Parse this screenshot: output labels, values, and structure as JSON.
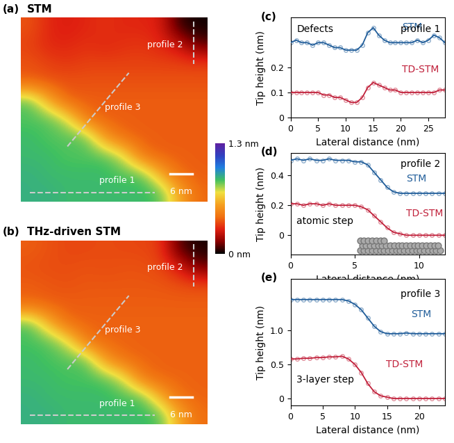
{
  "chart_data": [
    {
      "type": "heatmap",
      "panel": "(a)",
      "title": "STM",
      "annotations": [
        "profile 1",
        "profile 2",
        "profile 3"
      ],
      "scale_bar": "6 nm",
      "colorbar_range": [
        0,
        1.3
      ],
      "colorbar_ticks": [
        {
          "value": 0,
          "label": "0 nm"
        },
        {
          "value": 1.3,
          "label": "1.3 nm"
        }
      ],
      "cells": [
        [
          0.38,
          0.3,
          0.28,
          0.3,
          0.32,
          0.3,
          0.3,
          0.28,
          0.05,
          0.02
        ],
        [
          0.35,
          0.3,
          0.3,
          0.32,
          0.3,
          0.32,
          0.33,
          0.3,
          0.25,
          0.1
        ],
        [
          0.38,
          0.35,
          0.33,
          0.35,
          0.35,
          0.35,
          0.35,
          0.35,
          0.35,
          0.35
        ],
        [
          0.4,
          0.38,
          0.38,
          0.38,
          0.38,
          0.38,
          0.38,
          0.38,
          0.38,
          0.38
        ],
        [
          0.85,
          0.6,
          0.4,
          0.4,
          0.4,
          0.4,
          0.4,
          0.4,
          0.4,
          0.4
        ],
        [
          0.85,
          0.85,
          0.75,
          0.45,
          0.4,
          0.4,
          0.4,
          0.4,
          0.4,
          0.4
        ],
        [
          0.88,
          0.85,
          0.85,
          0.85,
          0.55,
          0.42,
          0.4,
          0.4,
          0.4,
          0.4
        ],
        [
          0.88,
          0.88,
          0.85,
          0.85,
          0.85,
          0.75,
          0.45,
          0.4,
          0.4,
          0.4
        ],
        [
          0.9,
          0.88,
          0.88,
          0.88,
          0.88,
          0.85,
          0.85,
          0.6,
          0.42,
          0.4
        ],
        [
          0.9,
          0.9,
          0.88,
          0.88,
          0.88,
          0.88,
          0.88,
          0.85,
          0.6,
          0.42
        ]
      ]
    },
    {
      "type": "heatmap",
      "panel": "(b)",
      "title": "THz-driven STM",
      "annotations": [
        "profile 1",
        "profile 2",
        "profile 3"
      ],
      "scale_bar": "6 nm",
      "colorbar_range": [
        0,
        1.3
      ],
      "cells": [
        [
          0.4,
          0.38,
          0.36,
          0.36,
          0.37,
          0.36,
          0.36,
          0.34,
          0.08,
          0.03
        ],
        [
          0.38,
          0.37,
          0.37,
          0.38,
          0.37,
          0.38,
          0.38,
          0.36,
          0.28,
          0.12
        ],
        [
          0.4,
          0.39,
          0.38,
          0.39,
          0.39,
          0.39,
          0.39,
          0.39,
          0.38,
          0.38
        ],
        [
          0.42,
          0.4,
          0.4,
          0.4,
          0.4,
          0.4,
          0.4,
          0.4,
          0.4,
          0.4
        ],
        [
          0.85,
          0.62,
          0.42,
          0.41,
          0.41,
          0.41,
          0.41,
          0.41,
          0.41,
          0.41
        ],
        [
          0.86,
          0.85,
          0.75,
          0.46,
          0.41,
          0.41,
          0.41,
          0.41,
          0.41,
          0.41
        ],
        [
          0.88,
          0.86,
          0.85,
          0.85,
          0.56,
          0.43,
          0.41,
          0.41,
          0.41,
          0.41
        ],
        [
          0.88,
          0.88,
          0.86,
          0.86,
          0.85,
          0.75,
          0.46,
          0.41,
          0.41,
          0.41
        ],
        [
          0.9,
          0.88,
          0.88,
          0.88,
          0.88,
          0.86,
          0.85,
          0.6,
          0.43,
          0.41
        ],
        [
          0.9,
          0.9,
          0.88,
          0.88,
          0.88,
          0.88,
          0.88,
          0.85,
          0.6,
          0.43
        ]
      ]
    },
    {
      "type": "line",
      "panel": "(c)",
      "annotation": "Defects",
      "profile": "profile 1",
      "ylabel": "Tip height (nm)",
      "xlabel": "Lateral distance (nm)",
      "xlim": [
        0,
        28
      ],
      "ylim": [
        0,
        0.4
      ],
      "xticks": [
        0,
        5,
        10,
        15,
        20,
        25
      ],
      "yticks": [
        0,
        0.1,
        0.2
      ],
      "x": [
        0,
        1,
        2,
        3,
        4,
        5,
        6,
        7,
        8,
        9,
        10,
        11,
        12,
        13,
        14,
        15,
        16,
        17,
        18,
        19,
        20,
        21,
        22,
        23,
        24,
        25,
        26,
        27,
        28
      ],
      "series": [
        {
          "name": "STM",
          "color": "#1f5c99",
          "marker": "o",
          "line_style": "solid",
          "values": [
            0.3,
            0.31,
            0.3,
            0.3,
            0.29,
            0.3,
            0.3,
            0.29,
            0.28,
            0.28,
            0.27,
            0.27,
            0.27,
            0.29,
            0.34,
            0.36,
            0.33,
            0.31,
            0.3,
            0.3,
            0.3,
            0.3,
            0.3,
            0.31,
            0.3,
            0.31,
            0.33,
            0.32,
            0.3
          ]
        },
        {
          "name": "TD-STM",
          "color": "#c0203a",
          "marker": "o",
          "line_style": "solid",
          "values": [
            0.1,
            0.1,
            0.1,
            0.1,
            0.1,
            0.1,
            0.09,
            0.09,
            0.08,
            0.08,
            0.07,
            0.06,
            0.06,
            0.08,
            0.12,
            0.14,
            0.13,
            0.12,
            0.11,
            0.11,
            0.1,
            0.1,
            0.1,
            0.1,
            0.1,
            0.1,
            0.1,
            0.11,
            0.11
          ]
        }
      ]
    },
    {
      "type": "line",
      "panel": "(d)",
      "annotation": "atomic step",
      "profile": "profile 2",
      "ylabel": "Tip height (nm)",
      "xlabel": "Lateral distance (nm)",
      "xlim": [
        0,
        12
      ],
      "ylim": [
        -0.13,
        0.55
      ],
      "xticks": [
        0,
        5,
        10
      ],
      "yticks": [
        0,
        0.2,
        0.4
      ],
      "x": [
        0,
        0.5,
        1,
        1.5,
        2,
        2.5,
        3,
        3.5,
        4,
        4.5,
        5,
        5.5,
        6,
        6.5,
        7,
        7.5,
        8,
        8.5,
        9,
        9.5,
        10,
        10.5,
        11,
        11.5,
        12
      ],
      "series": [
        {
          "name": "STM",
          "color": "#1f5c99",
          "marker": "o",
          "line_style": "solid",
          "values": [
            0.5,
            0.51,
            0.5,
            0.51,
            0.5,
            0.5,
            0.51,
            0.5,
            0.5,
            0.5,
            0.49,
            0.49,
            0.47,
            0.42,
            0.37,
            0.32,
            0.29,
            0.28,
            0.28,
            0.28,
            0.28,
            0.28,
            0.28,
            0.28,
            0.28
          ]
        },
        {
          "name": "TD-STM",
          "color": "#c0203a",
          "marker": "o",
          "line_style": "solid",
          "values": [
            0.21,
            0.21,
            0.2,
            0.21,
            0.21,
            0.2,
            0.21,
            0.2,
            0.2,
            0.2,
            0.2,
            0.19,
            0.17,
            0.13,
            0.09,
            0.05,
            0.02,
            0.01,
            0.0,
            0.0,
            0.0,
            0.0,
            0.0,
            0.0,
            0.0
          ]
        }
      ]
    },
    {
      "type": "line",
      "panel": "(e)",
      "annotation": "3-layer step",
      "profile": "profile 3",
      "ylabel": "Tip height (nm)",
      "xlabel": "Lateral distance (nm)",
      "xlim": [
        0,
        24
      ],
      "ylim": [
        -0.1,
        1.75
      ],
      "xticks": [
        0,
        5,
        10,
        15,
        20
      ],
      "yticks": [
        0,
        0.5,
        {
          "value": 1,
          "label": "1.0"
        }
      ],
      "x": [
        0,
        1,
        2,
        3,
        4,
        5,
        6,
        7,
        8,
        9,
        10,
        11,
        12,
        13,
        14,
        15,
        16,
        17,
        18,
        19,
        20,
        21,
        22,
        23,
        24
      ],
      "series": [
        {
          "name": "STM",
          "color": "#1f5c99",
          "marker": "o",
          "line_style": "solid",
          "values": [
            1.45,
            1.45,
            1.45,
            1.45,
            1.45,
            1.45,
            1.45,
            1.45,
            1.45,
            1.43,
            1.38,
            1.3,
            1.18,
            1.06,
            0.98,
            0.95,
            0.95,
            0.95,
            0.96,
            0.95,
            0.95,
            0.95,
            0.95,
            0.95,
            0.95
          ]
        },
        {
          "name": "TD-STM",
          "color": "#c0203a",
          "marker": "o",
          "line_style": "solid",
          "values": [
            0.58,
            0.58,
            0.59,
            0.59,
            0.6,
            0.6,
            0.61,
            0.61,
            0.62,
            0.58,
            0.5,
            0.38,
            0.22,
            0.1,
            0.04,
            0.02,
            0.0,
            0.0,
            0.0,
            0.0,
            0.0,
            0.0,
            0.0,
            0.0,
            0.0
          ]
        }
      ]
    }
  ]
}
